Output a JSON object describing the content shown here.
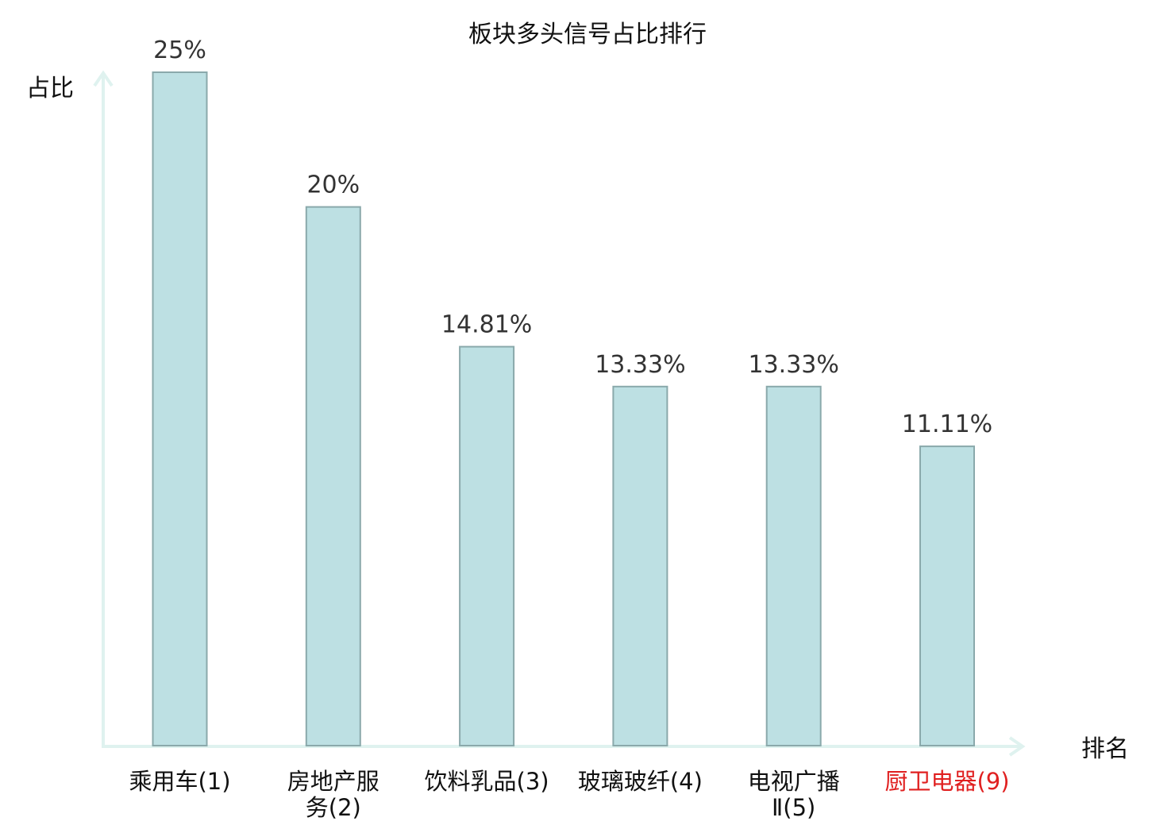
{
  "chart_data": {
    "type": "bar",
    "title": "板块多头信号占比排行",
    "ylabel": "占比",
    "xlabel": "排名",
    "categories": [
      [
        "乘用车(1)"
      ],
      [
        "房地产服",
        "务(2)"
      ],
      [
        "饮料乳品(3)"
      ],
      [
        "玻璃玻纤(4)"
      ],
      [
        "电视广播",
        "Ⅱ(5)"
      ],
      [
        "厨卫电器(9)"
      ]
    ],
    "values": [
      25,
      20,
      14.81,
      13.33,
      13.33,
      11.11
    ],
    "value_labels": [
      "25%",
      "20%",
      "14.81%",
      "13.33%",
      "13.33%",
      "11.11%"
    ],
    "highlight_index": 5,
    "ylim": [
      0,
      25
    ],
    "grid": false,
    "colors": {
      "bar_fill": "#bde0e3",
      "bar_stroke": "#8aa9ab",
      "axis": "#dff2ef",
      "text": "#333333",
      "highlight_text": "#e02020"
    }
  }
}
